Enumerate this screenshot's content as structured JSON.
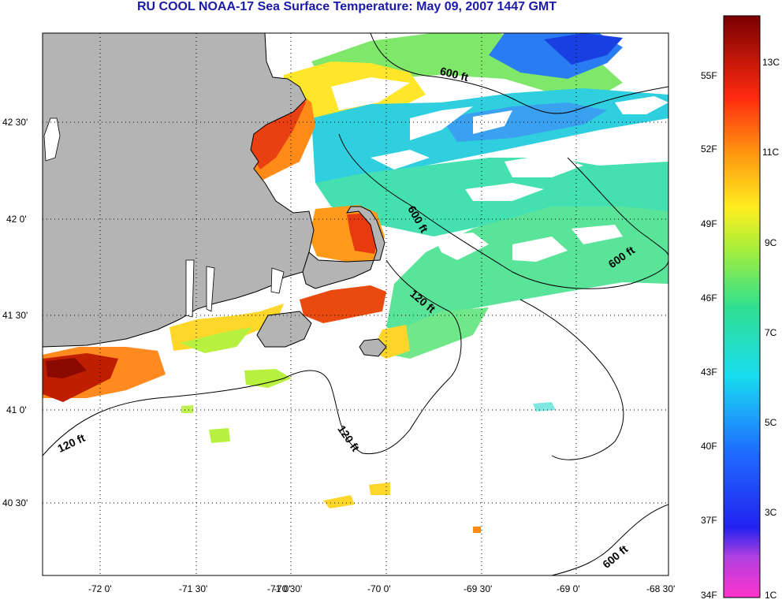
{
  "title": "RU COOL  NOAA-17  Sea Surface Temperature:  May 09, 2007 1447 GMT",
  "longitude_ticks": [
    "-72 0'",
    "-71 30'",
    "-71 0'",
    "-70 30'",
    "-70 0'",
    "-69 30'",
    "-69 0'",
    "-68 30'"
  ],
  "latitude_ticks": [
    "42 30'",
    "42 0'",
    "41 30'",
    "41 0'",
    "40 30'"
  ],
  "contour_labels": {
    "c600_north": "600 ft",
    "c600_diag": "600 ft",
    "c600_east": "600 ft",
    "c600_south": "600 ft",
    "c120_cape": "120 ft",
    "c120_west": "120 ft",
    "c120_shoals": "120 ft"
  },
  "colorbar": {
    "fahrenheit": [
      "55F",
      "52F",
      "49F",
      "46F",
      "43F",
      "40F",
      "37F",
      "34F"
    ],
    "celsius": [
      "13C",
      "11C",
      "9C",
      "7C",
      "5C",
      "3C",
      "1C"
    ]
  },
  "colors": {
    "land": "#b4b4b4",
    "title": "#1a1aa6"
  }
}
